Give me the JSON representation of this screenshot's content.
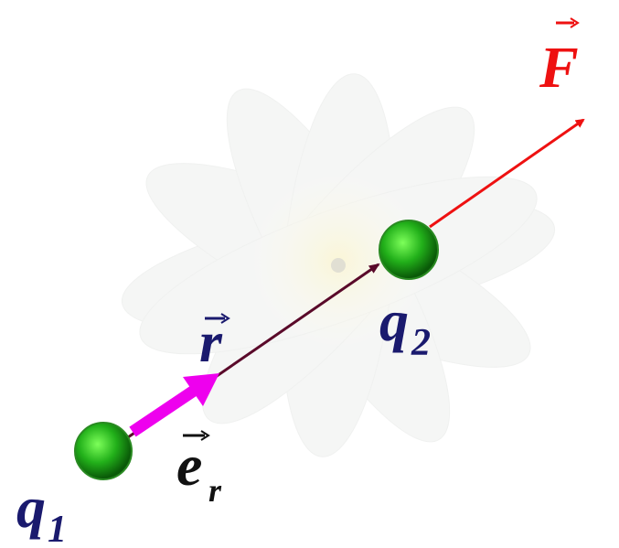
{
  "vectors": {
    "force": "F",
    "radius": "r",
    "unit": {
      "symbol": "e",
      "subscript": "r"
    }
  },
  "charges": [
    {
      "symbol": "q",
      "subscript": "1"
    },
    {
      "symbol": "q",
      "subscript": "2"
    }
  ]
}
